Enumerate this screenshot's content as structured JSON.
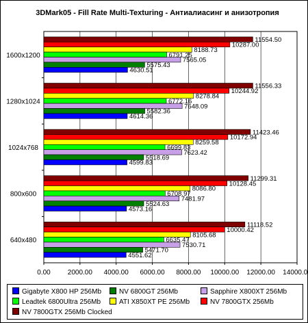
{
  "chart_data": {
    "type": "bar",
    "orientation": "horizontal",
    "title": "3DMark05 - Fill Rate Multi-Texturing - Антиалиасинг и анизотропия",
    "xlabel": "",
    "ylabel": "",
    "xlim": [
      0,
      14000
    ],
    "x_ticks": [
      "0.00",
      "2000.00",
      "4000.00",
      "6000.00",
      "8000.00",
      "10000.00",
      "12000.00",
      "14000.00"
    ],
    "grid": "vertical",
    "legend_position": "bottom",
    "categories": [
      "1600x1200",
      "1280x1024",
      "1024x768",
      "800x600",
      "640x480"
    ],
    "series": [
      {
        "name": "NV 7800GTX 256Mb Clocked",
        "color": "#800000",
        "values": [
          11554.5,
          11556.33,
          11423.46,
          11299.31,
          11118.52
        ],
        "labels": [
          "11554.50",
          "11556.33",
          "11423.46",
          "11299.31",
          "11118.52"
        ]
      },
      {
        "name": "NV 7800GTX 256Mb",
        "color": "#ff0000",
        "values": [
          10287.0,
          10244.92,
          10172.94,
          10128.45,
          10000.42
        ],
        "labels": [
          "10287.00",
          "10244.92",
          "10172.94",
          "10128.45",
          "10000.42"
        ]
      },
      {
        "name": "ATI X850XT PE 256Mb",
        "color": "#ffff00",
        "values": [
          8188.73,
          8278.84,
          8259.58,
          8086.8,
          8105.68
        ],
        "labels": [
          "8188.73",
          "8278.84",
          "8259.58",
          "8086.80",
          "8105.68"
        ]
      },
      {
        "name": "Leadtek 6800Ultra 256Mb",
        "color": "#00ff00",
        "values": [
          6791.25,
          6772.16,
          6699.83,
          6708.97,
          6635.47
        ],
        "labels": [
          "6791.25",
          "6772.16",
          "6699.83",
          "6708.97",
          "6635.47"
        ]
      },
      {
        "name": "Sapphire X800XT 256Mb",
        "color": "#c8a0e8",
        "values": [
          7565.05,
          7648.09,
          7623.42,
          7481.97,
          7530.71
        ],
        "labels": [
          "7565.05",
          "7648.09",
          "7623.42",
          "7481.97",
          "7530.71"
        ]
      },
      {
        "name": "NV 6800GT 256Mb",
        "color": "#008000",
        "values": [
          5575.43,
          5582.36,
          5518.69,
          5524.63,
          5471.7
        ],
        "labels": [
          "5575.43",
          "5582.36",
          "5518.69",
          "5524.63",
          "5471.70"
        ]
      },
      {
        "name": "Gigabyte X800 HP 256Mb",
        "color": "#0000ff",
        "values": [
          4630.51,
          4614.36,
          4599.83,
          4573.16,
          4551.62
        ],
        "labels": [
          "4630.51",
          "4614.36",
          "4599.83",
          "4573.16",
          "4551.62"
        ]
      }
    ],
    "legend_order": [
      6,
      5,
      4,
      3,
      2,
      1,
      0
    ]
  },
  "colors": {
    "plot_background": "#ffffff",
    "frame": "#000000",
    "gridline": "#000000"
  }
}
